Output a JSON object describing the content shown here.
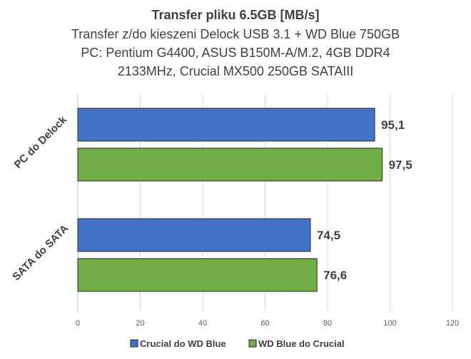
{
  "chart_data": {
    "type": "bar",
    "orientation": "horizontal",
    "title": "Transfer pliku 6.5GB [MB/s]",
    "subtitle_lines": [
      "Transfer z/do kieszeni Delock USB 3.1 + WD Blue 750GB",
      "PC: Pentium G4400, ASUS B150M-A/M.2, 4GB DDR4",
      "2133MHz, Crucial MX500 250GB SATAIII"
    ],
    "categories": [
      "PC do Delock",
      "SATA do SATA"
    ],
    "series": [
      {
        "name": "Crucial do WD Blue",
        "color": "#4472C4",
        "values": [
          95.1,
          74.5
        ],
        "labels": [
          "95,1",
          "74,5"
        ]
      },
      {
        "name": "WD Blue do Crucial",
        "color": "#70AD47",
        "values": [
          97.5,
          76.6
        ],
        "labels": [
          "97,5",
          "76,6"
        ]
      }
    ],
    "xlim": [
      0,
      120
    ],
    "xticks": [
      0,
      20,
      40,
      60,
      80,
      100,
      120
    ],
    "grid": true,
    "legend_position": "bottom"
  }
}
